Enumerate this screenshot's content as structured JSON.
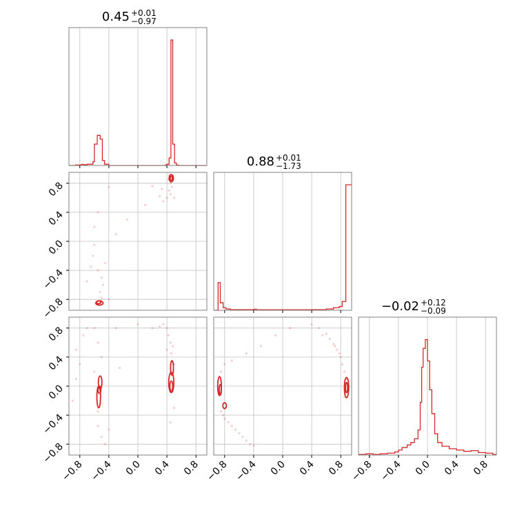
{
  "figure": {
    "colors": {
      "line": "#d62728",
      "grid": "#bfbfbf",
      "frame": "#808080"
    }
  },
  "chart_data": {
    "type": "corner",
    "parameters": [
      {
        "median": "0.45",
        "plus": "+0.01",
        "minus": "−0.97"
      },
      {
        "median": "0.88",
        "plus": "+0.01",
        "minus": "−1.73"
      },
      {
        "median": "−0.02",
        "plus": "+0.12",
        "minus": "−0.09"
      }
    ],
    "axis_range": [
      -0.95,
      0.95
    ],
    "ticks": [
      -0.8,
      -0.4,
      0.0,
      0.4,
      0.8
    ],
    "tick_labels": [
      "−0.8",
      "−0.4",
      "0.0",
      "0.4",
      "0.8"
    ],
    "grid": true,
    "histograms": [
      {
        "param": 0,
        "ymax": 1.0,
        "steps": [
          [
            -0.95,
            0
          ],
          [
            -0.9,
            0
          ],
          [
            -0.86,
            0.004
          ],
          [
            -0.82,
            0.004
          ],
          [
            -0.78,
            0.008
          ],
          [
            -0.74,
            0.006
          ],
          [
            -0.7,
            0.01
          ],
          [
            -0.66,
            0.01
          ],
          [
            -0.62,
            0.03
          ],
          [
            -0.6,
            0.17
          ],
          [
            -0.56,
            0.24
          ],
          [
            -0.52,
            0.21
          ],
          [
            -0.49,
            0.04
          ],
          [
            -0.46,
            0.01
          ],
          [
            -0.4,
            0
          ],
          [
            0.38,
            0.005
          ],
          [
            0.4,
            0.01
          ],
          [
            0.43,
            0.06
          ],
          [
            0.455,
            1.0
          ],
          [
            0.48,
            0.17
          ],
          [
            0.505,
            0.02
          ],
          [
            0.53,
            0.003
          ],
          [
            0.56,
            0
          ]
        ]
      },
      {
        "param": 1,
        "ymax": 1.0,
        "steps": [
          [
            -0.95,
            0
          ],
          [
            -0.89,
            0.22
          ],
          [
            -0.86,
            0.06
          ],
          [
            -0.82,
            0.02
          ],
          [
            -0.78,
            0.01
          ],
          [
            -0.72,
            0.005
          ],
          [
            -0.4,
            0.008
          ],
          [
            -0.36,
            0.004
          ],
          [
            0.4,
            0.005
          ],
          [
            0.6,
            0.01
          ],
          [
            0.7,
            0.02
          ],
          [
            0.78,
            0.03
          ],
          [
            0.82,
            0.07
          ],
          [
            0.87,
            1.0
          ]
        ]
      },
      {
        "param": 2,
        "ymax": 1.0,
        "steps": [
          [
            -0.95,
            0.005
          ],
          [
            -0.85,
            0.01
          ],
          [
            -0.75,
            0.005
          ],
          [
            -0.65,
            0.01
          ],
          [
            -0.55,
            0.015
          ],
          [
            -0.45,
            0.025
          ],
          [
            -0.4,
            0.04
          ],
          [
            -0.35,
            0.06
          ],
          [
            -0.28,
            0.08
          ],
          [
            -0.23,
            0.1
          ],
          [
            -0.18,
            0.13
          ],
          [
            -0.13,
            0.2
          ],
          [
            -0.1,
            0.42
          ],
          [
            -0.08,
            0.7
          ],
          [
            -0.06,
            0.85
          ],
          [
            -0.03,
            0.92
          ],
          [
            0.0,
            0.75
          ],
          [
            0.03,
            0.52
          ],
          [
            0.06,
            0.33
          ],
          [
            0.1,
            0.17
          ],
          [
            0.14,
            0.1
          ],
          [
            0.2,
            0.07
          ],
          [
            0.3,
            0.05
          ],
          [
            0.4,
            0.04
          ],
          [
            0.5,
            0.03
          ],
          [
            0.6,
            0.035
          ],
          [
            0.7,
            0.02
          ],
          [
            0.8,
            0.015
          ],
          [
            0.9,
            0.005
          ]
        ]
      }
    ],
    "panels_2d": [
      {
        "x_param": 0,
        "y_param": 1,
        "scatter": [
          [
            0.44,
            0.91
          ],
          [
            0.46,
            0.88
          ],
          [
            0.48,
            0.84
          ],
          [
            0.45,
            0.8
          ],
          [
            0.47,
            0.75
          ],
          [
            0.43,
            0.7
          ],
          [
            0.45,
            0.65
          ],
          [
            0.4,
            0.6
          ],
          [
            0.35,
            0.55
          ],
          [
            0.3,
            0.62
          ],
          [
            0.33,
            0.72
          ],
          [
            0.2,
            0.76
          ],
          [
            0.1,
            0.5
          ],
          [
            -0.15,
            0.3
          ],
          [
            -0.3,
            0.1
          ],
          [
            -0.4,
            0.75
          ],
          [
            -0.55,
            0.4
          ],
          [
            -0.6,
            0.2
          ],
          [
            -0.6,
            -0.05
          ],
          [
            -0.62,
            -0.2
          ],
          [
            -0.65,
            -0.35
          ],
          [
            -0.55,
            -0.4
          ],
          [
            -0.5,
            -0.5
          ],
          [
            -0.48,
            -0.6
          ],
          [
            -0.52,
            -0.7
          ],
          [
            -0.5,
            -0.78
          ],
          [
            -0.52,
            -0.85
          ],
          [
            -0.45,
            -0.3
          ],
          [
            -0.7,
            -0.55
          ],
          [
            -0.4,
            -0.8
          ],
          [
            0.5,
            0.6
          ],
          [
            0.42,
            0.85
          ]
        ],
        "contours": [
          {
            "cx": -0.53,
            "cy": -0.85,
            "rx": 0.05,
            "ry": 0.03
          },
          {
            "cx": -0.54,
            "cy": -0.84,
            "rx": 0.03,
            "ry": 0.02
          },
          {
            "cx": 0.46,
            "cy": 0.87,
            "rx": 0.03,
            "ry": 0.05
          },
          {
            "cx": 0.46,
            "cy": 0.87,
            "rx": 0.015,
            "ry": 0.03
          }
        ]
      },
      {
        "x_param": 0,
        "y_param": 2,
        "scatter": [
          [
            -0.85,
            0.5
          ],
          [
            -0.8,
            0.3
          ],
          [
            -0.75,
            0.7
          ],
          [
            -0.7,
            0.8
          ],
          [
            -0.6,
            0.8
          ],
          [
            -0.55,
            0.6
          ],
          [
            -0.5,
            0.4
          ],
          [
            -0.55,
            -0.35
          ],
          [
            -0.55,
            -0.55
          ],
          [
            -0.5,
            -0.7
          ],
          [
            -0.45,
            -0.8
          ],
          [
            -0.4,
            -0.6
          ],
          [
            -0.85,
            0.1
          ],
          [
            -0.9,
            -0.2
          ],
          [
            -0.3,
            0.8
          ],
          [
            0.0,
            0.85
          ],
          [
            0.2,
            0.8
          ],
          [
            0.3,
            0.82
          ],
          [
            0.35,
            0.85
          ],
          [
            0.4,
            0.8
          ],
          [
            0.42,
            0.7
          ],
          [
            0.45,
            0.6
          ],
          [
            0.48,
            0.55
          ],
          [
            0.46,
            0.45
          ],
          [
            0.5,
            0.3
          ],
          [
            0.4,
            0.5
          ],
          [
            0.5,
            -0.3
          ],
          [
            -0.25,
            0.25
          ],
          [
            -0.6,
            0.2
          ],
          [
            0.45,
            -0.5
          ]
        ],
        "contours": [
          {
            "cx": -0.52,
            "cy": 0.05,
            "rx": 0.025,
            "ry": 0.09
          },
          {
            "cx": -0.54,
            "cy": -0.15,
            "rx": 0.025,
            "ry": 0.15
          },
          {
            "cx": -0.53,
            "cy": -0.05,
            "rx": 0.02,
            "ry": 0.05
          },
          {
            "cx": 0.46,
            "cy": 0.05,
            "rx": 0.035,
            "ry": 0.14
          },
          {
            "cx": 0.47,
            "cy": 0.25,
            "rx": 0.02,
            "ry": 0.1
          },
          {
            "cx": 0.46,
            "cy": 0.0,
            "rx": 0.02,
            "ry": 0.07
          }
        ]
      },
      {
        "x_param": 1,
        "y_param": 2,
        "scatter": [
          [
            -0.85,
            -0.35
          ],
          [
            -0.82,
            -0.4
          ],
          [
            -0.8,
            -0.45
          ],
          [
            -0.75,
            -0.5
          ],
          [
            -0.7,
            -0.55
          ],
          [
            -0.65,
            -0.6
          ],
          [
            -0.6,
            -0.65
          ],
          [
            -0.55,
            -0.7
          ],
          [
            -0.5,
            -0.75
          ],
          [
            -0.45,
            -0.8
          ],
          [
            -0.4,
            -0.82
          ],
          [
            -0.85,
            0.2
          ],
          [
            -0.8,
            0.3
          ],
          [
            -0.7,
            0.35
          ],
          [
            -0.5,
            0.45
          ],
          [
            -0.3,
            0.55
          ],
          [
            -0.1,
            0.7
          ],
          [
            0.1,
            0.8
          ],
          [
            0.4,
            0.85
          ],
          [
            0.5,
            0.8
          ],
          [
            0.6,
            0.72
          ],
          [
            0.65,
            0.65
          ],
          [
            0.7,
            0.58
          ],
          [
            0.75,
            0.5
          ],
          [
            0.8,
            0.4
          ],
          [
            0.82,
            0.3
          ],
          [
            0.85,
            0.2
          ],
          [
            0.88,
            0.1
          ],
          [
            0.86,
            -0.1
          ],
          [
            0.85,
            -0.15
          ],
          [
            0.55,
            0.7
          ],
          [
            0.72,
            0.55
          ],
          [
            0.78,
            0.45
          ]
        ],
        "contours": [
          {
            "cx": -0.87,
            "cy": 0.0,
            "rx": 0.025,
            "ry": 0.13
          },
          {
            "cx": -0.86,
            "cy": -0.05,
            "rx": 0.015,
            "ry": 0.07
          },
          {
            "cx": -0.8,
            "cy": -0.27,
            "rx": 0.025,
            "ry": 0.04
          },
          {
            "cx": 0.88,
            "cy": -0.02,
            "rx": 0.03,
            "ry": 0.14
          },
          {
            "cx": 0.88,
            "cy": -0.02,
            "rx": 0.015,
            "ry": 0.07
          }
        ]
      }
    ]
  }
}
